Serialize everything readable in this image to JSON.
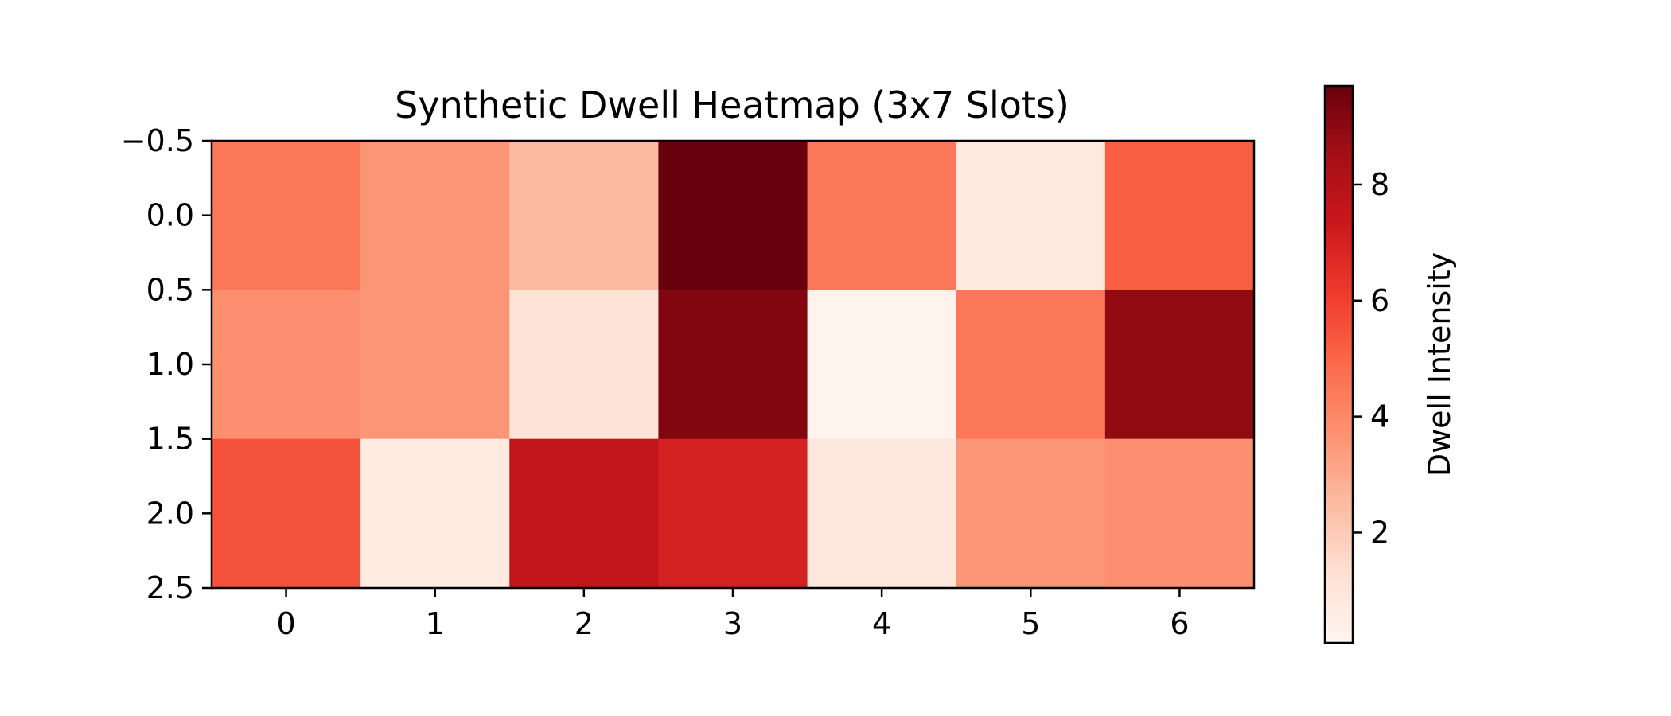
{
  "chart_data": {
    "type": "heatmap",
    "title": "Synthetic Dwell Heatmap (3x7 Slots)",
    "xlabel": "",
    "ylabel": "",
    "colormap": "Reds",
    "colorbar_label": "Dwell Intensity",
    "colorbar_range": [
      0.1,
      9.7
    ],
    "colorbar_ticks": [
      2,
      4,
      6,
      8
    ],
    "colorbar_tick_labels": [
      "2",
      "4",
      "6",
      "8"
    ],
    "x_ticks": [
      0,
      1,
      2,
      3,
      4,
      5,
      6
    ],
    "x_tick_labels": [
      "0",
      "1",
      "2",
      "3",
      "4",
      "5",
      "6"
    ],
    "y_ticks": [
      -0.5,
      0.0,
      0.5,
      1.0,
      1.5,
      2.0,
      2.5
    ],
    "y_tick_labels": [
      "−0.5",
      "0.0",
      "0.5",
      "1.0",
      "1.5",
      "2.0",
      "2.5"
    ],
    "xlim": [
      -0.5,
      6.5
    ],
    "ylim": [
      2.5,
      -0.5
    ],
    "values": [
      [
        4.5,
        3.6,
        2.5,
        9.7,
        4.5,
        0.8,
        5.2
      ],
      [
        3.8,
        3.6,
        1.1,
        9.2,
        0.2,
        4.5,
        8.9
      ],
      [
        5.5,
        0.7,
        7.6,
        7.0,
        0.9,
        3.6,
        3.8
      ]
    ],
    "grid": false
  }
}
